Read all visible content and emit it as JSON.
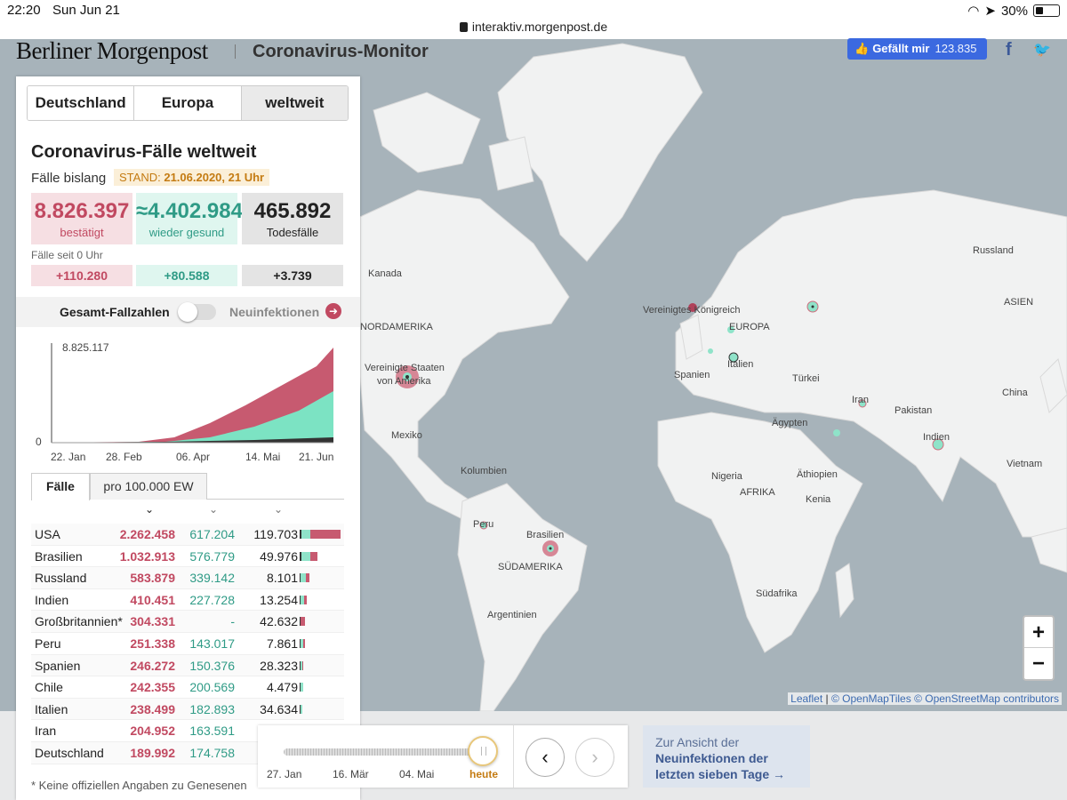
{
  "statusbar": {
    "time": "22:20",
    "date": "Sun Jun 21",
    "battery": "30%",
    "url": "interaktiv.morgenpost.de"
  },
  "header": {
    "brand": "Berliner Morgenpost",
    "subtitle": "Coronavirus-Monitor",
    "like_label": "Gefällt mir",
    "like_count": "123.835",
    "fb": "f"
  },
  "tabs": [
    "Deutschland",
    "Europa",
    "weltweit"
  ],
  "panel": {
    "title": "Coronavirus-Fälle weltweit",
    "faelle_label": "Fälle bislang",
    "stand_label": "STAND:",
    "stand_value": "21.06.2020, 21 Uhr",
    "confirmed": "8.826.397",
    "confirmed_label": "bestätigt",
    "recovered": "≈4.402.984",
    "recovered_label": "wieder gesund",
    "deaths": "465.892",
    "deaths_label": "Todesfälle",
    "seit_label": "Fälle seit 0 Uhr",
    "d_confirmed": "+110.280",
    "d_recovered": "+80.588",
    "d_deaths": "+3.739",
    "toggle_left": "Gesamt-Fallzahlen",
    "toggle_right": "Neuinfektionen",
    "table_tab1": "Fälle",
    "table_tab2": "pro 100.000 EW",
    "footnote": "* Keine offiziellen Angaben zu Genesenen"
  },
  "chart_data": {
    "type": "area",
    "x": [
      "22. Jan",
      "28. Feb",
      "06. Apr",
      "14. Mai",
      "21. Jun"
    ],
    "ymax_label": "8.825.117",
    "ymin_label": "0",
    "series": [],
    "colors": {
      "confirmed": "#c75a70",
      "recovered": "#7ce3c3",
      "deaths": "#333333"
    }
  },
  "countries": [
    {
      "name": "USA",
      "c": "2.262.458",
      "r": "617.204",
      "d": "119.703"
    },
    {
      "name": "Brasilien",
      "c": "1.032.913",
      "r": "576.779",
      "d": "49.976"
    },
    {
      "name": "Russland",
      "c": "583.879",
      "r": "339.142",
      "d": "8.101"
    },
    {
      "name": "Indien",
      "c": "410.451",
      "r": "227.728",
      "d": "13.254"
    },
    {
      "name": "Großbritannien*",
      "c": "304.331",
      "r": "-",
      "d": "42.632"
    },
    {
      "name": "Peru",
      "c": "251.338",
      "r": "143.017",
      "d": "7.861"
    },
    {
      "name": "Spanien",
      "c": "246.272",
      "r": "150.376",
      "d": "28.323"
    },
    {
      "name": "Chile",
      "c": "242.355",
      "r": "200.569",
      "d": "4.479"
    },
    {
      "name": "Italien",
      "c": "238.499",
      "r": "182.893",
      "d": "34.634"
    },
    {
      "name": "Iran",
      "c": "204.952",
      "r": "163.591",
      "d": ""
    },
    {
      "name": "Deutschland",
      "c": "189.992",
      "r": "174.758",
      "d": ""
    }
  ],
  "slider": {
    "labels": [
      "27. Jan",
      "16. Mär",
      "04. Mai",
      "heute"
    ]
  },
  "ansicht": {
    "l1": "Zur Ansicht der",
    "l2": "Neuinfektionen der",
    "l3": "letzten sieben Tage →"
  },
  "map": {
    "labels": [
      "Kanada",
      "NORDAMERIKA",
      "Vereinigte Staaten",
      "von Amerika",
      "Mexiko",
      "Kolumbien",
      "Peru",
      "Brasilien",
      "SÜDAMERIKA",
      "Argentinien",
      "Vereinigtes Königreich",
      "EUROPA",
      "Italien",
      "Spanien",
      "Türkei",
      "Russland",
      "ASIEN",
      "China",
      "Iran",
      "Pakistan",
      "Indien",
      "Vietnam",
      "Ägypten",
      "Nigeria",
      "Äthiopien",
      "AFRIKA",
      "Kenia",
      "Südafrika"
    ],
    "attribution_a": "Leaflet",
    "attribution_b": "© OpenMapTiles © OpenStreetMap contributors",
    "zoom_in": "+",
    "zoom_out": "−"
  }
}
